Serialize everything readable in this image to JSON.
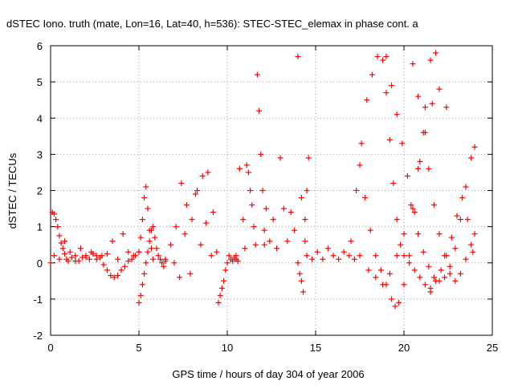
{
  "chart_data": {
    "type": "scatter",
    "title": "dSTEC Iono. truth (mate, Lon=16, Lat=40, h=536): STEC-STEC_elemax in phase cont. a",
    "xlabel": "GPS time / hours of day 304 of year 2006",
    "ylabel": "dSTEC  / TECUs",
    "xlim": [
      0,
      25
    ],
    "ylim": [
      -2,
      6
    ],
    "xticks": [
      0,
      5,
      10,
      15,
      20,
      25
    ],
    "yticks": [
      -2,
      -1,
      0,
      1,
      2,
      3,
      4,
      5,
      6
    ],
    "grid": true,
    "marker": "+",
    "color": "#ff0000",
    "series": [
      {
        "x": [
          0.0,
          0.1,
          0.2,
          0.3,
          0.4,
          0.5,
          0.6,
          0.7,
          0.8,
          0.9,
          1.0,
          1.2,
          1.4,
          1.6,
          1.8,
          2.0,
          2.2,
          2.4,
          2.6,
          2.8,
          3.0,
          3.2,
          3.4,
          3.6,
          3.8,
          4.0,
          4.2,
          4.4,
          4.6,
          4.8,
          5.0
        ],
        "y": [
          0.0,
          1.4,
          1.35,
          1.2,
          1.0,
          0.75,
          0.55,
          0.4,
          0.25,
          0.1,
          0.05,
          0.15,
          0.2,
          0.05,
          0.15,
          0.2,
          0.1,
          0.25,
          0.2,
          0.15,
          -0.05,
          -0.2,
          -0.35,
          -0.4,
          -0.35,
          -0.2,
          -0.1,
          0.05,
          0.1,
          0.2,
          0.3
        ]
      },
      {
        "x": [
          0.2,
          0.5,
          0.8,
          1.1,
          1.4,
          1.7,
          2.0,
          2.3,
          2.6,
          2.9,
          3.2,
          3.5,
          3.8,
          4.1,
          4.4,
          4.7
        ],
        "y": [
          0.2,
          0.1,
          0.6,
          0.3,
          0.05,
          0.4,
          0.15,
          0.3,
          0.1,
          0.2,
          0.25,
          0.6,
          0.1,
          0.8,
          0.3,
          0.2
        ]
      },
      {
        "x": [
          5.0,
          5.1,
          5.2,
          5.3,
          5.4,
          5.5,
          5.6,
          5.7,
          5.8,
          5.9,
          6.0,
          6.1,
          6.2,
          6.3,
          6.4,
          6.5
        ],
        "y": [
          -1.1,
          -0.9,
          -0.6,
          -0.3,
          0.0,
          0.3,
          0.6,
          0.9,
          1.0,
          0.7,
          0.4,
          0.2,
          0.1,
          0.0,
          -0.1,
          0.05
        ]
      },
      {
        "x": [
          5.0,
          5.1,
          5.2,
          5.3,
          5.4,
          5.5,
          5.6,
          5.7,
          5.8
        ],
        "y": [
          0.3,
          0.7,
          1.2,
          1.8,
          2.1,
          1.5,
          0.9,
          0.4,
          0.1
        ]
      },
      {
        "x": [
          6.5,
          6.8,
          7.1,
          7.4,
          7.7,
          8.0,
          8.3,
          8.6,
          8.9,
          9.2,
          9.4
        ],
        "y": [
          0.1,
          0.5,
          1.0,
          2.2,
          1.6,
          1.2,
          2.0,
          2.4,
          2.5,
          1.4,
          0.3
        ]
      },
      {
        "x": [
          7.0,
          7.3,
          7.6,
          7.9,
          8.2,
          8.5,
          8.8,
          9.1
        ],
        "y": [
          0.0,
          -0.4,
          0.8,
          -0.3,
          1.9,
          0.5,
          1.1,
          0.2
        ]
      },
      {
        "x": [
          9.5,
          9.6,
          9.7,
          9.8,
          9.9,
          10.0,
          10.1,
          10.2,
          10.3,
          10.4,
          10.5,
          10.6
        ],
        "y": [
          -1.1,
          -0.9,
          -0.7,
          -0.5,
          -0.2,
          0.0,
          0.2,
          0.1,
          0.05,
          0.15,
          0.1,
          0.05
        ]
      },
      {
        "x": [
          10.5,
          10.7,
          10.9,
          11.0,
          11.1,
          11.2,
          11.3,
          11.4,
          11.5,
          11.6,
          11.7,
          11.8,
          11.9,
          12.0,
          12.1
        ],
        "y": [
          0.2,
          2.6,
          1.2,
          0.4,
          2.7,
          2.5,
          2.0,
          1.6,
          1.0,
          0.5,
          5.2,
          4.2,
          3.0,
          2.0,
          0.9
        ]
      },
      {
        "x": [
          12.1,
          12.2,
          12.4,
          12.6,
          12.8,
          13.0,
          13.2,
          13.4,
          13.6,
          13.8,
          14.0,
          14.2,
          14.4
        ],
        "y": [
          0.5,
          1.5,
          0.6,
          1.2,
          0.4,
          2.9,
          1.5,
          0.6,
          1.4,
          0.9,
          5.7,
          1.8,
          0.6
        ]
      },
      {
        "x": [
          14.0,
          14.1,
          14.2,
          14.3,
          14.4,
          14.5,
          14.6
        ],
        "y": [
          0.0,
          -0.3,
          -0.5,
          -0.8,
          1.2,
          2.0,
          2.9
        ]
      },
      {
        "x": [
          14.5,
          14.8,
          15.1,
          15.4,
          15.7,
          16.0,
          16.3,
          16.6,
          16.9,
          17.2,
          17.5
        ],
        "y": [
          0.2,
          0.1,
          0.3,
          0.1,
          0.4,
          0.2,
          0.1,
          0.3,
          0.2,
          0.1,
          0.2
        ]
      },
      {
        "x": [
          17.0,
          17.3,
          17.6,
          17.9,
          18.2,
          18.5,
          18.8,
          19.0,
          19.2,
          19.4,
          19.6,
          19.8,
          20.0,
          20.3,
          20.6,
          20.9,
          21.2,
          21.5
        ],
        "y": [
          0.6,
          2.0,
          3.3,
          4.5,
          5.2,
          5.7,
          5.6,
          4.7,
          3.4,
          2.2,
          1.2,
          0.5,
          0.2,
          0.0,
          -0.2,
          -0.4,
          -0.6,
          -0.7
        ]
      },
      {
        "x": [
          17.5,
          17.8,
          18.1,
          18.4,
          18.7,
          19.0,
          19.3,
          19.5,
          19.7,
          20.0,
          20.3,
          20.6,
          20.9,
          21.2,
          21.5,
          21.8
        ],
        "y": [
          2.7,
          1.8,
          0.9,
          0.2,
          -0.2,
          -0.6,
          -1.0,
          -1.2,
          -1.1,
          -0.6,
          0.2,
          1.4,
          2.8,
          4.3,
          5.6,
          5.8
        ]
      },
      {
        "x": [
          18.0,
          18.4,
          18.8,
          19.2,
          19.6,
          20.0,
          20.4,
          20.8,
          21.2,
          21.6,
          22.0,
          22.4
        ],
        "y": [
          -0.2,
          -0.4,
          -0.6,
          -0.3,
          0.2,
          0.8,
          1.6,
          2.6,
          3.6,
          4.4,
          4.8,
          4.3
        ]
      },
      {
        "x": [
          19.0,
          19.3,
          19.6,
          19.9,
          20.2,
          20.5,
          20.8,
          21.1,
          21.4,
          21.7,
          22.0,
          22.3,
          22.6,
          22.9,
          23.2,
          23.5,
          23.8,
          24.0
        ],
        "y": [
          5.7,
          4.9,
          4.1,
          3.3,
          2.4,
          1.5,
          0.8,
          0.3,
          -0.1,
          -0.4,
          -0.5,
          -0.4,
          -0.1,
          0.4,
          1.2,
          2.1,
          2.9,
          3.2
        ]
      },
      {
        "x": [
          20.5,
          20.8,
          21.1,
          21.4,
          21.7,
          22.0,
          22.3,
          22.6,
          22.9,
          23.2,
          23.5,
          23.8,
          24.0
        ],
        "y": [
          5.5,
          4.6,
          3.6,
          2.6,
          1.6,
          0.8,
          0.2,
          -0.3,
          -0.5,
          -0.3,
          0.1,
          0.5,
          0.8
        ]
      },
      {
        "x": [
          21.5,
          21.8,
          22.1,
          22.4,
          22.7,
          23.0,
          23.3,
          23.6,
          23.9
        ],
        "y": [
          -0.8,
          -0.5,
          -0.2,
          0.2,
          0.7,
          1.3,
          1.8,
          1.2,
          0.3
        ]
      }
    ]
  }
}
